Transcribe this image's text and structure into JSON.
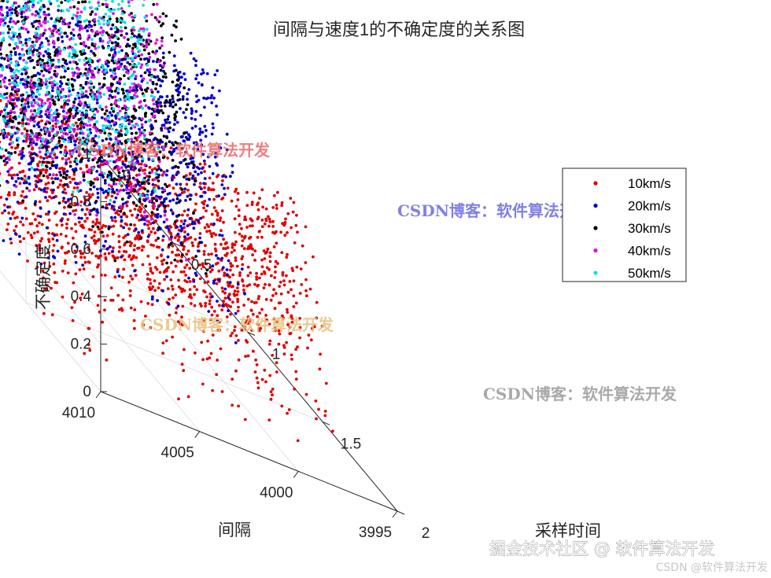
{
  "chart_data": {
    "type": "scatter3d",
    "title": "间隔与速度1的不确定度的关系图",
    "xlabel": "采样时间",
    "ylabel": "间隔",
    "zlabel": "不确定度",
    "xlim": [
      0,
      2
    ],
    "ylim": [
      3995,
      4010
    ],
    "zlim": [
      0,
      1
    ],
    "xticks": [
      "0",
      "0.5",
      "1",
      "1.5",
      "2"
    ],
    "yticks": [
      "3995",
      "4000",
      "4005",
      "4010"
    ],
    "zticks": [
      "0",
      "0.2",
      "0.4",
      "0.6",
      "0.8",
      "1"
    ],
    "grid": true,
    "legend_position": "top-right",
    "series": [
      {
        "name": "10km/s",
        "color": "#e00000",
        "peak_time": 1.35,
        "peak_uncertainty": 0.82,
        "spread": 0.14
      },
      {
        "name": "20km/s",
        "color": "#0000cc",
        "peak_time": 0.82,
        "peak_uncertainty": 0.99,
        "spread": 0.1
      },
      {
        "name": "30km/s",
        "color": "#000000",
        "peak_time": 0.55,
        "peak_uncertainty": 1.0,
        "spread": 0.08
      },
      {
        "name": "40km/s",
        "color": "#e010e0",
        "peak_time": 0.42,
        "peak_uncertainty": 1.0,
        "spread": 0.06
      },
      {
        "name": "50km/s",
        "color": "#00e5e5",
        "peak_time": 0.33,
        "peak_uncertainty": 1.0,
        "spread": 0.05
      }
    ]
  },
  "watermarks": [
    {
      "text": "CSDN博客：软件算法开发",
      "color": "#e86a6a"
    },
    {
      "text": "CSDN博客：软件算法开发",
      "color": "#6a6ae0"
    },
    {
      "text": "CSDN博客：软件算法开发",
      "color": "#e8c07a"
    },
    {
      "text": "CSDN博客：软件算法开发",
      "color": "#9a9a9a"
    }
  ],
  "footer": {
    "main": "掘金技术社区 @ 软件算法开发",
    "sub": "CSDN @软件算法开发"
  }
}
